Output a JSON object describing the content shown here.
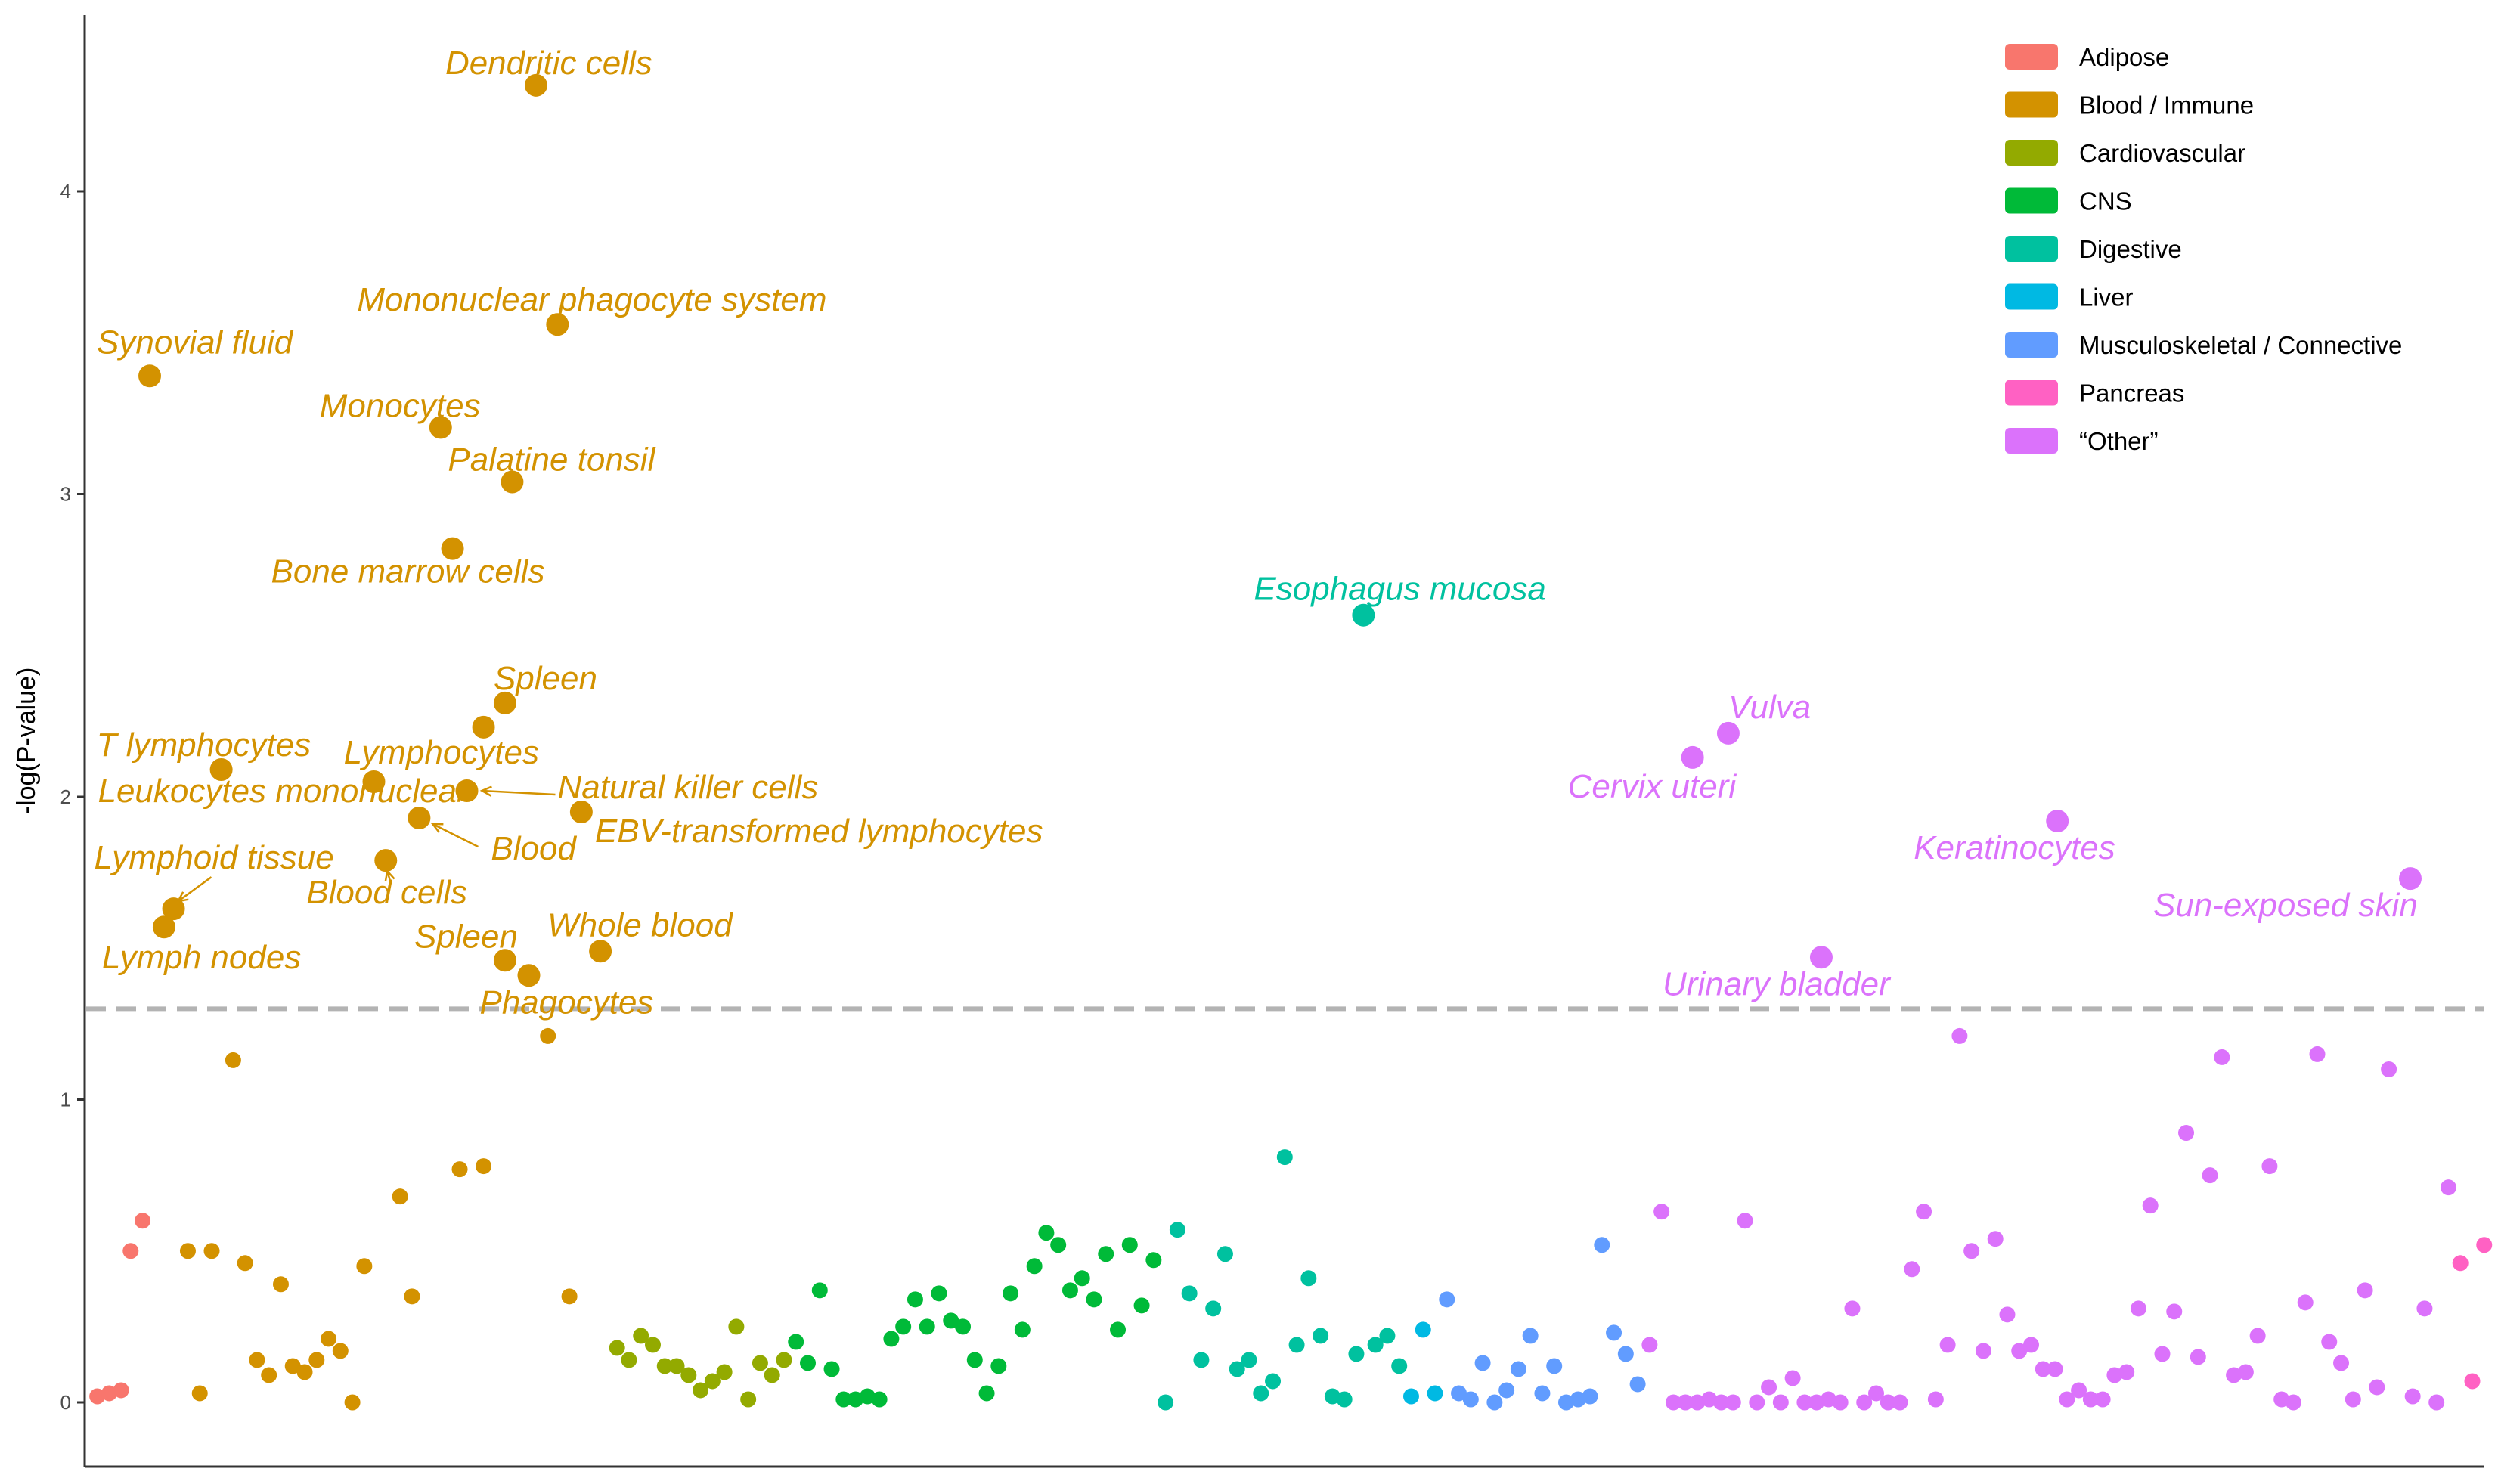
{
  "chart_data": {
    "type": "scatter",
    "title": "",
    "xlabel": "",
    "ylabel": "-log(P-value)",
    "ylim": [
      -0.22,
      4.6
    ],
    "xlim": [
      0,
      100
    ],
    "yticks": [
      0,
      1,
      2,
      3,
      4
    ],
    "significance_line": 1.3,
    "categories": [
      {
        "name": "Adipose",
        "color": "#F8766D"
      },
      {
        "name": "Blood / Immune",
        "color": "#D39200"
      },
      {
        "name": "Cardiovascular",
        "color": "#93AA00"
      },
      {
        "name": "CNS",
        "color": "#00BA38"
      },
      {
        "name": "Digestive",
        "color": "#00C19F"
      },
      {
        "name": "Liver",
        "color": "#00B9E3"
      },
      {
        "name": "Musculoskeletal / Connective",
        "color": "#619CFF"
      },
      {
        "name": "Pancreas",
        "color": "#FF61C3"
      },
      {
        "name": "“Other”",
        "color": "#DB72FB"
      }
    ],
    "labeled_points": [
      {
        "label": "Dendritic cells",
        "cat": 1,
        "x": 18.8,
        "y": 4.35
      },
      {
        "label": "Mononuclear phagocyte system",
        "cat": 1,
        "x": 19.7,
        "y": 3.56
      },
      {
        "label": "Synovial fluid",
        "cat": 1,
        "x": 2.6,
        "y": 3.39
      },
      {
        "label": "Monocytes",
        "cat": 1,
        "x": 14.8,
        "y": 3.22
      },
      {
        "label": "Palatine tonsil",
        "cat": 1,
        "x": 17.8,
        "y": 3.04
      },
      {
        "label": "Bone marrow cells",
        "cat": 1,
        "x": 15.3,
        "y": 2.82
      },
      {
        "label": "Spleen",
        "cat": 1,
        "x": 17.5,
        "y": 2.31
      },
      {
        "label": "Lymphocytes",
        "cat": 1,
        "x": 16.6,
        "y": 2.23
      },
      {
        "label": "T lymphocytes",
        "cat": 1,
        "x": 5.6,
        "y": 2.09
      },
      {
        "label": "Leukocytes mononuclear",
        "cat": 1,
        "x": 12.0,
        "y": 2.05
      },
      {
        "label": "Natural killer cells",
        "cat": 1,
        "x": 15.9,
        "y": 2.02
      },
      {
        "label": "Blood",
        "cat": 1,
        "x": 13.9,
        "y": 1.93
      },
      {
        "label": "EBV-transformed lymphocytes",
        "cat": 1,
        "x": 20.7,
        "y": 1.95
      },
      {
        "label": "Lymphoid tissue",
        "cat": 1,
        "x": 3.6,
        "y": 1.63
      },
      {
        "label": "Blood cells",
        "cat": 1,
        "x": 12.5,
        "y": 1.79
      },
      {
        "label": "Lymph nodes",
        "cat": 1,
        "x": 3.2,
        "y": 1.57
      },
      {
        "label": "Whole blood",
        "cat": 1,
        "x": 21.5,
        "y": 1.49
      },
      {
        "label": "Spleen",
        "cat": 1,
        "x": 17.5,
        "y": 1.46
      },
      {
        "label": "Phagocytes",
        "cat": 1,
        "x": 18.5,
        "y": 1.41
      },
      {
        "label": "Esophagus mucosa",
        "cat": 4,
        "x": 53.5,
        "y": 2.6
      },
      {
        "label": "Vulva",
        "cat": 8,
        "x": 68.8,
        "y": 2.21
      },
      {
        "label": "Cervix uteri",
        "cat": 8,
        "x": 67.3,
        "y": 2.13
      },
      {
        "label": "Keratinocytes",
        "cat": 8,
        "x": 82.6,
        "y": 1.92
      },
      {
        "label": "Sun-exposed skin",
        "cat": 8,
        "x": 97.4,
        "y": 1.73
      },
      {
        "label": "Urinary bladder",
        "cat": 8,
        "x": 72.7,
        "y": 1.47
      }
    ],
    "points": [
      [
        0,
        0.4,
        0.02
      ],
      [
        0,
        0.9,
        0.03
      ],
      [
        0,
        1.4,
        0.04
      ],
      [
        0,
        1.8,
        0.5
      ],
      [
        0,
        2.3,
        0.6
      ],
      [
        1,
        4.2,
        0.5
      ],
      [
        1,
        4.7,
        0.03
      ],
      [
        1,
        5.2,
        0.5
      ],
      [
        1,
        6.1,
        1.13
      ],
      [
        1,
        6.6,
        0.46
      ],
      [
        1,
        7.1,
        0.14
      ],
      [
        1,
        7.6,
        0.09
      ],
      [
        1,
        8.1,
        0.39
      ],
      [
        1,
        8.6,
        0.12
      ],
      [
        1,
        9.1,
        0.1
      ],
      [
        1,
        9.6,
        0.14
      ],
      [
        1,
        10.1,
        0.21
      ],
      [
        1,
        10.6,
        0.17
      ],
      [
        1,
        11.1,
        0.0
      ],
      [
        1,
        11.6,
        0.45
      ],
      [
        1,
        13.1,
        0.68
      ],
      [
        1,
        13.6,
        0.35
      ],
      [
        1,
        15.6,
        0.77
      ],
      [
        1,
        16.6,
        0.78
      ],
      [
        1,
        19.3,
        1.21
      ],
      [
        1,
        20.2,
        0.35
      ],
      [
        2,
        22.2,
        0.18
      ],
      [
        2,
        22.7,
        0.14
      ],
      [
        2,
        23.2,
        0.22
      ],
      [
        2,
        23.7,
        0.19
      ],
      [
        2,
        24.2,
        0.12
      ],
      [
        2,
        24.7,
        0.12
      ],
      [
        2,
        25.2,
        0.09
      ],
      [
        2,
        25.7,
        0.04
      ],
      [
        2,
        26.2,
        0.07
      ],
      [
        2,
        26.7,
        0.1
      ],
      [
        2,
        27.2,
        0.25
      ],
      [
        2,
        27.7,
        0.01
      ],
      [
        2,
        28.2,
        0.13
      ],
      [
        2,
        28.7,
        0.09
      ],
      [
        2,
        29.2,
        0.14
      ],
      [
        3,
        29.7,
        0.2
      ],
      [
        3,
        30.2,
        0.13
      ],
      [
        3,
        30.7,
        0.37
      ],
      [
        3,
        31.2,
        0.11
      ],
      [
        3,
        31.7,
        0.01
      ],
      [
        3,
        32.2,
        0.01
      ],
      [
        3,
        32.7,
        0.02
      ],
      [
        3,
        33.2,
        0.01
      ],
      [
        3,
        33.7,
        0.21
      ],
      [
        3,
        34.2,
        0.25
      ],
      [
        3,
        34.7,
        0.34
      ],
      [
        3,
        35.2,
        0.25
      ],
      [
        3,
        35.7,
        0.36
      ],
      [
        3,
        36.2,
        0.27
      ],
      [
        3,
        36.7,
        0.25
      ],
      [
        3,
        37.2,
        0.14
      ],
      [
        3,
        37.7,
        0.03
      ],
      [
        3,
        38.2,
        0.12
      ],
      [
        3,
        38.7,
        0.36
      ],
      [
        3,
        39.2,
        0.24
      ],
      [
        3,
        39.7,
        0.45
      ],
      [
        3,
        40.2,
        0.56
      ],
      [
        3,
        40.7,
        0.52
      ],
      [
        3,
        41.2,
        0.37
      ],
      [
        3,
        41.7,
        0.41
      ],
      [
        3,
        42.2,
        0.34
      ],
      [
        3,
        42.7,
        0.49
      ],
      [
        3,
        43.2,
        0.24
      ],
      [
        3,
        43.7,
        0.52
      ],
      [
        3,
        44.2,
        0.32
      ],
      [
        3,
        44.7,
        0.47
      ],
      [
        4,
        45.2,
        0.0
      ],
      [
        4,
        45.7,
        0.57
      ],
      [
        4,
        46.2,
        0.36
      ],
      [
        4,
        46.7,
        0.14
      ],
      [
        4,
        47.2,
        0.31
      ],
      [
        4,
        47.7,
        0.49
      ],
      [
        4,
        48.2,
        0.11
      ],
      [
        4,
        48.7,
        0.14
      ],
      [
        4,
        49.2,
        0.03
      ],
      [
        4,
        49.7,
        0.07
      ],
      [
        4,
        50.2,
        0.81
      ],
      [
        4,
        50.7,
        0.19
      ],
      [
        4,
        51.2,
        0.41
      ],
      [
        4,
        51.7,
        0.22
      ],
      [
        4,
        52.2,
        0.02
      ],
      [
        4,
        52.7,
        0.01
      ],
      [
        4,
        53.2,
        0.16
      ],
      [
        4,
        54.0,
        0.19
      ],
      [
        4,
        54.5,
        0.22
      ],
      [
        4,
        55.0,
        0.12
      ],
      [
        5,
        55.5,
        0.02
      ],
      [
        5,
        56.0,
        0.24
      ],
      [
        5,
        56.5,
        0.03
      ],
      [
        6,
        57.0,
        0.34
      ],
      [
        6,
        57.5,
        0.03
      ],
      [
        6,
        58.0,
        0.01
      ],
      [
        6,
        58.5,
        0.13
      ],
      [
        6,
        59.0,
        0.0
      ],
      [
        6,
        59.5,
        0.04
      ],
      [
        6,
        60.0,
        0.11
      ],
      [
        6,
        60.5,
        0.22
      ],
      [
        6,
        61.0,
        0.03
      ],
      [
        6,
        61.5,
        0.12
      ],
      [
        6,
        62.0,
        0.0
      ],
      [
        6,
        62.5,
        0.01
      ],
      [
        6,
        63.0,
        0.02
      ],
      [
        6,
        63.5,
        0.52
      ],
      [
        6,
        64.0,
        0.23
      ],
      [
        6,
        64.5,
        0.16
      ],
      [
        6,
        65.0,
        0.06
      ],
      [
        8,
        65.5,
        0.19
      ],
      [
        8,
        66.0,
        0.63
      ],
      [
        8,
        66.5,
        0.0
      ],
      [
        8,
        67.0,
        0.0
      ],
      [
        8,
        67.5,
        0.0
      ],
      [
        8,
        68.0,
        0.01
      ],
      [
        8,
        68.5,
        0.0
      ],
      [
        8,
        69.0,
        0.0
      ],
      [
        8,
        69.5,
        0.6
      ],
      [
        8,
        70.0,
        0.0
      ],
      [
        8,
        70.5,
        0.05
      ],
      [
        8,
        71.0,
        0.0
      ],
      [
        8,
        71.5,
        0.08
      ],
      [
        8,
        72.0,
        0.0
      ],
      [
        8,
        72.5,
        0.0
      ],
      [
        8,
        73.0,
        0.01
      ],
      [
        8,
        73.5,
        0.0
      ],
      [
        8,
        74.0,
        0.31
      ],
      [
        8,
        74.5,
        0.0
      ],
      [
        8,
        75.0,
        0.03
      ],
      [
        8,
        75.5,
        0.0
      ],
      [
        8,
        76.0,
        0.0
      ],
      [
        8,
        76.5,
        0.44
      ],
      [
        8,
        77.0,
        0.63
      ],
      [
        8,
        77.5,
        0.01
      ],
      [
        8,
        78.0,
        0.19
      ],
      [
        8,
        78.5,
        1.21
      ],
      [
        8,
        79.0,
        0.5
      ],
      [
        8,
        79.5,
        0.17
      ],
      [
        8,
        80.0,
        0.54
      ],
      [
        8,
        80.5,
        0.29
      ],
      [
        8,
        81.0,
        0.17
      ],
      [
        8,
        81.5,
        0.19
      ],
      [
        8,
        82.0,
        0.11
      ],
      [
        8,
        82.5,
        0.11
      ],
      [
        8,
        83.0,
        0.01
      ],
      [
        8,
        83.5,
        0.04
      ],
      [
        8,
        84.0,
        0.01
      ],
      [
        8,
        84.5,
        0.01
      ],
      [
        8,
        85.0,
        0.09
      ],
      [
        8,
        85.5,
        0.1
      ],
      [
        8,
        86.0,
        0.31
      ],
      [
        8,
        86.5,
        0.65
      ],
      [
        8,
        87.0,
        0.16
      ],
      [
        8,
        87.5,
        0.3
      ],
      [
        8,
        88.0,
        0.89
      ],
      [
        8,
        88.5,
        0.15
      ],
      [
        8,
        89.0,
        0.75
      ],
      [
        8,
        89.5,
        1.14
      ],
      [
        8,
        90.0,
        0.09
      ],
      [
        8,
        90.5,
        0.1
      ],
      [
        8,
        91.0,
        0.22
      ],
      [
        8,
        91.5,
        0.78
      ],
      [
        8,
        92.0,
        0.01
      ],
      [
        8,
        92.5,
        0.0
      ],
      [
        8,
        93.0,
        0.33
      ],
      [
        8,
        93.5,
        1.15
      ],
      [
        8,
        94.0,
        0.2
      ],
      [
        8,
        94.5,
        0.13
      ],
      [
        8,
        95.0,
        0.01
      ],
      [
        8,
        95.5,
        0.37
      ],
      [
        8,
        96.0,
        0.05
      ],
      [
        8,
        96.5,
        1.1
      ],
      [
        8,
        97.5,
        0.02
      ],
      [
        8,
        98.0,
        0.31
      ],
      [
        8,
        98.5,
        0.0
      ],
      [
        8,
        99.0,
        0.71
      ],
      [
        7,
        99.5,
        0.46
      ],
      [
        7,
        100.0,
        0.07
      ],
      [
        7,
        100.5,
        0.52
      ]
    ]
  }
}
